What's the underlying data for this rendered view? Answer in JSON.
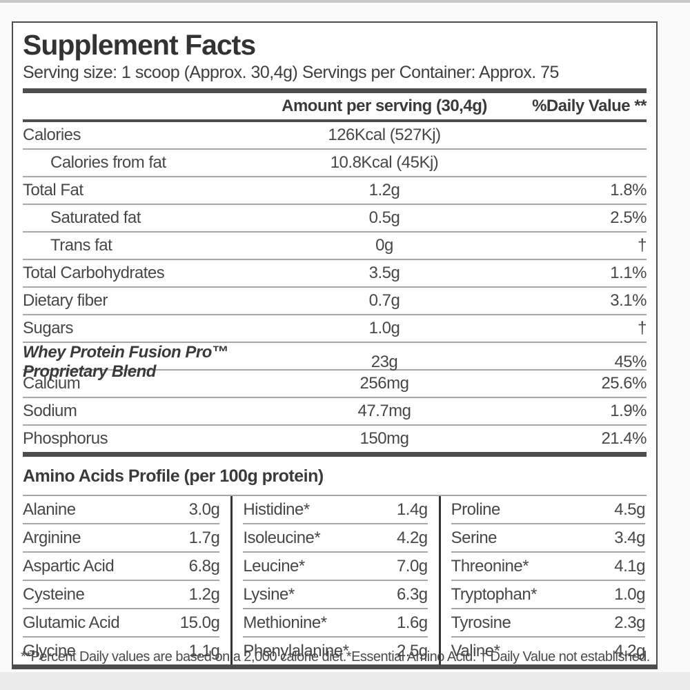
{
  "label": {
    "title": "Supplement Facts",
    "serving_line": "Serving size: 1 scoop (Approx. 30,4g) Servings per Container: Approx. 75",
    "header": {
      "amount": "Amount per serving (30,4g)",
      "daily_value": "%Daily Value **"
    },
    "main_table": {
      "rows": [
        {
          "name": "Calories",
          "amount": "126Kcal (527Kj)",
          "dv": "",
          "indent": false,
          "emphasis": false
        },
        {
          "name": "Calories from fat",
          "amount": "10.8Kcal (45Kj)",
          "dv": "",
          "indent": true,
          "emphasis": false
        },
        {
          "name": "Total Fat",
          "amount": "1.2g",
          "dv": "1.8%",
          "indent": false,
          "emphasis": false
        },
        {
          "name": "Saturated fat",
          "amount": "0.5g",
          "dv": "2.5%",
          "indent": true,
          "emphasis": false
        },
        {
          "name": "Trans fat",
          "amount": "0g",
          "dv": "†",
          "indent": true,
          "emphasis": false
        },
        {
          "name": "Total Carbohydrates",
          "amount": "3.5g",
          "dv": "1.1%",
          "indent": false,
          "emphasis": false
        },
        {
          "name": "Dietary fiber",
          "amount": "0.7g",
          "dv": "3.1%",
          "indent": false,
          "emphasis": false
        },
        {
          "name": "Sugars",
          "amount": "1.0g",
          "dv": "†",
          "indent": false,
          "emphasis": false
        },
        {
          "name": "Whey Protein Fusion Pro™ Proprietary Blend",
          "amount": "23g",
          "dv": "45%",
          "indent": false,
          "emphasis": true
        },
        {
          "name": "Calcium",
          "amount": "256mg",
          "dv": "25.6%",
          "indent": false,
          "emphasis": false
        },
        {
          "name": "Sodium",
          "amount": "47.7mg",
          "dv": "1.9%",
          "indent": false,
          "emphasis": false
        },
        {
          "name": "Phosphorus",
          "amount": "150mg",
          "dv": "21.4%",
          "indent": false,
          "emphasis": false
        }
      ]
    },
    "amino_profile": {
      "heading": "Amino Acids Profile (per 100g protein)",
      "columns": [
        [
          {
            "name": "Alanine",
            "value": "3.0g"
          },
          {
            "name": "Arginine",
            "value": "1.7g"
          },
          {
            "name": "Aspartic Acid",
            "value": "6.8g"
          },
          {
            "name": "Cysteine",
            "value": "1.2g"
          },
          {
            "name": "Glutamic Acid",
            "value": "15.0g"
          },
          {
            "name": "Glycine",
            "value": "1.1g"
          }
        ],
        [
          {
            "name": "Histidine*",
            "value": "1.4g"
          },
          {
            "name": "Isoleucine*",
            "value": "4.2g"
          },
          {
            "name": "Leucine*",
            "value": "7.0g"
          },
          {
            "name": "Lysine*",
            "value": "6.3g"
          },
          {
            "name": "Methionine*",
            "value": "1.6g"
          },
          {
            "name": "Phenylalanine*",
            "value": "2.5g"
          }
        ],
        [
          {
            "name": "Proline",
            "value": "4.5g"
          },
          {
            "name": "Serine",
            "value": "3.4g"
          },
          {
            "name": "Threonine*",
            "value": "4.1g"
          },
          {
            "name": "Tryptophan*",
            "value": "1.0g"
          },
          {
            "name": "Tyrosine",
            "value": "2.3g"
          },
          {
            "name": "Valine*",
            "value": "4.2g"
          }
        ]
      ]
    },
    "footnote": "**Percent Daily values are based on a 2,000 calorie diet.*Essential Amino Acid. † Daily Value not established."
  },
  "colors": {
    "bar": "#4d4d4d",
    "thin_rule": "#a6a6a6",
    "text": "#474747",
    "background": "#f8f8f8"
  }
}
